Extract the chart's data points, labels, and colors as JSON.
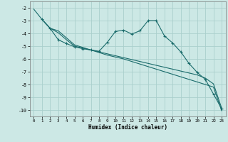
{
  "xlabel": "Humidex (Indice chaleur)",
  "bg_color": "#cce8e5",
  "grid_color": "#aacfcc",
  "line_color": "#1a6b6b",
  "xlim": [
    -0.5,
    23.5
  ],
  "ylim": [
    -10.5,
    -1.5
  ],
  "yticks": [
    -2,
    -3,
    -4,
    -5,
    -6,
    -7,
    -8,
    -9,
    -10
  ],
  "xticks": [
    0,
    1,
    2,
    3,
    4,
    5,
    6,
    7,
    8,
    9,
    10,
    11,
    12,
    13,
    14,
    15,
    16,
    17,
    18,
    19,
    20,
    21,
    22,
    23
  ],
  "curve1_x": [
    0,
    1,
    2,
    3,
    4,
    5,
    6,
    7,
    8,
    9,
    10,
    11,
    12,
    13,
    14,
    15,
    16,
    17,
    18,
    19,
    20,
    21,
    22,
    23
  ],
  "curve1_y": [
    -2.1,
    -2.9,
    -3.6,
    -3.8,
    -4.35,
    -4.9,
    -5.1,
    -5.3,
    -5.5,
    -5.7,
    -5.85,
    -6.0,
    -6.2,
    -6.4,
    -6.6,
    -6.8,
    -7.0,
    -7.2,
    -7.4,
    -7.6,
    -7.8,
    -8.0,
    -8.2,
    -10.05
  ],
  "curve2_x": [
    1,
    2,
    3,
    4,
    5,
    6,
    7,
    8,
    9,
    10,
    11,
    12,
    13,
    14,
    15,
    16,
    17,
    18,
    19,
    20,
    21,
    22,
    23
  ],
  "curve2_y": [
    -2.9,
    -3.6,
    -3.95,
    -4.5,
    -5.0,
    -5.15,
    -5.3,
    -5.45,
    -5.6,
    -5.75,
    -5.9,
    -6.05,
    -6.2,
    -6.35,
    -6.5,
    -6.65,
    -6.8,
    -6.95,
    -7.1,
    -7.25,
    -7.5,
    -7.95,
    -9.85
  ],
  "curve3_x": [
    1,
    2,
    3,
    4,
    5,
    6,
    7,
    8,
    9,
    10,
    11,
    12,
    13,
    14,
    15,
    16,
    17,
    18,
    19,
    20,
    21,
    22,
    23
  ],
  "curve3_y": [
    -2.9,
    -3.6,
    -4.5,
    -4.8,
    -5.05,
    -5.2,
    -5.3,
    -5.4,
    -4.7,
    -3.85,
    -3.75,
    -4.05,
    -3.8,
    -3.0,
    -3.0,
    -4.2,
    -4.75,
    -5.45,
    -6.35,
    -7.05,
    -7.6,
    -8.75,
    -9.9
  ]
}
